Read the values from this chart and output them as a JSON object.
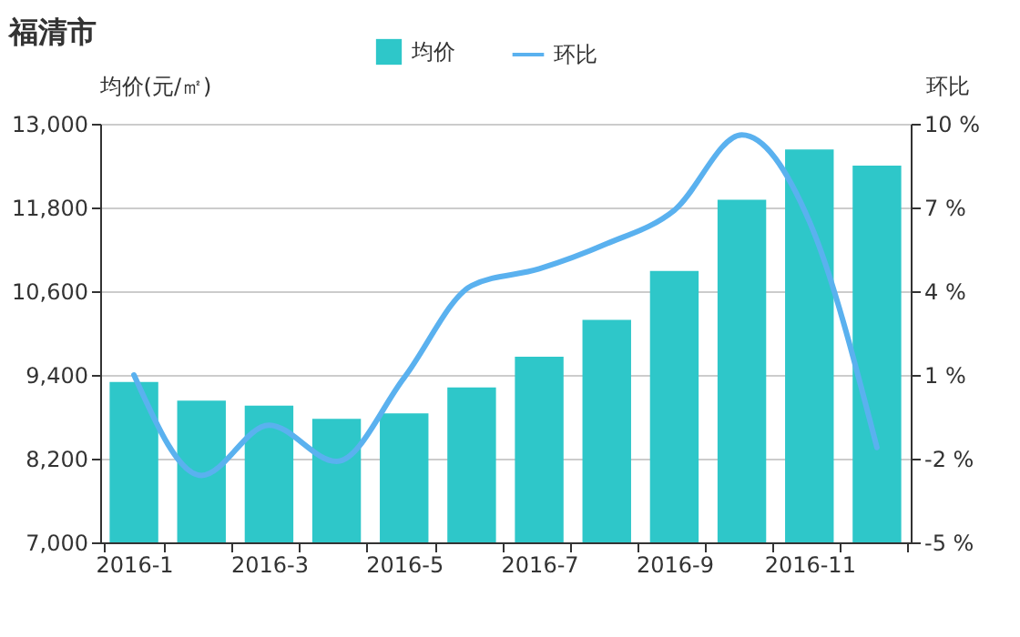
{
  "chart_data": {
    "type": "bar",
    "title": "福清市",
    "ylabel": "均价(元/㎡)",
    "y2label": "环比",
    "categories": [
      "2016-1",
      null,
      "2016-3",
      null,
      "2016-5",
      null,
      "2016-7",
      null,
      "2016-9",
      null,
      "2016-11",
      null
    ],
    "series": [
      {
        "name": "均价",
        "color": "#2ec7c9",
        "values": [
          9300,
          9030,
          8960,
          8770,
          8850,
          9220,
          9660,
          10190,
          10890,
          11910,
          12630,
          12400
        ]
      },
      {
        "name": "环比",
        "type": "line",
        "axis": "y2",
        "color": "#5ab1ef",
        "values": [
          1.0,
          -2.6,
          -0.8,
          -2.1,
          0.9,
          4.2,
          4.8,
          5.7,
          6.9,
          9.6,
          6.5,
          -1.6
        ]
      }
    ],
    "ylim": [
      7000,
      13000
    ],
    "yticks": [
      {
        "value": 7000,
        "label": "7,000"
      },
      {
        "value": 8200,
        "label": "8,200"
      },
      {
        "value": 9400,
        "label": "9,400"
      },
      {
        "value": 10600,
        "label": "10,600"
      },
      {
        "value": 11800,
        "label": "11,800"
      },
      {
        "value": 13000,
        "label": "13,000"
      }
    ],
    "y2lim": [
      -5,
      10
    ],
    "y2ticks": [
      {
        "value": -5,
        "label": "-5 %"
      },
      {
        "value": -2,
        "label": "-2 %"
      },
      {
        "value": 1,
        "label": "1 %"
      },
      {
        "value": 4,
        "label": "4 %"
      },
      {
        "value": 7,
        "label": "7 %"
      },
      {
        "value": 10,
        "label": "10 %"
      }
    ],
    "grid": "y",
    "legend": "top"
  }
}
